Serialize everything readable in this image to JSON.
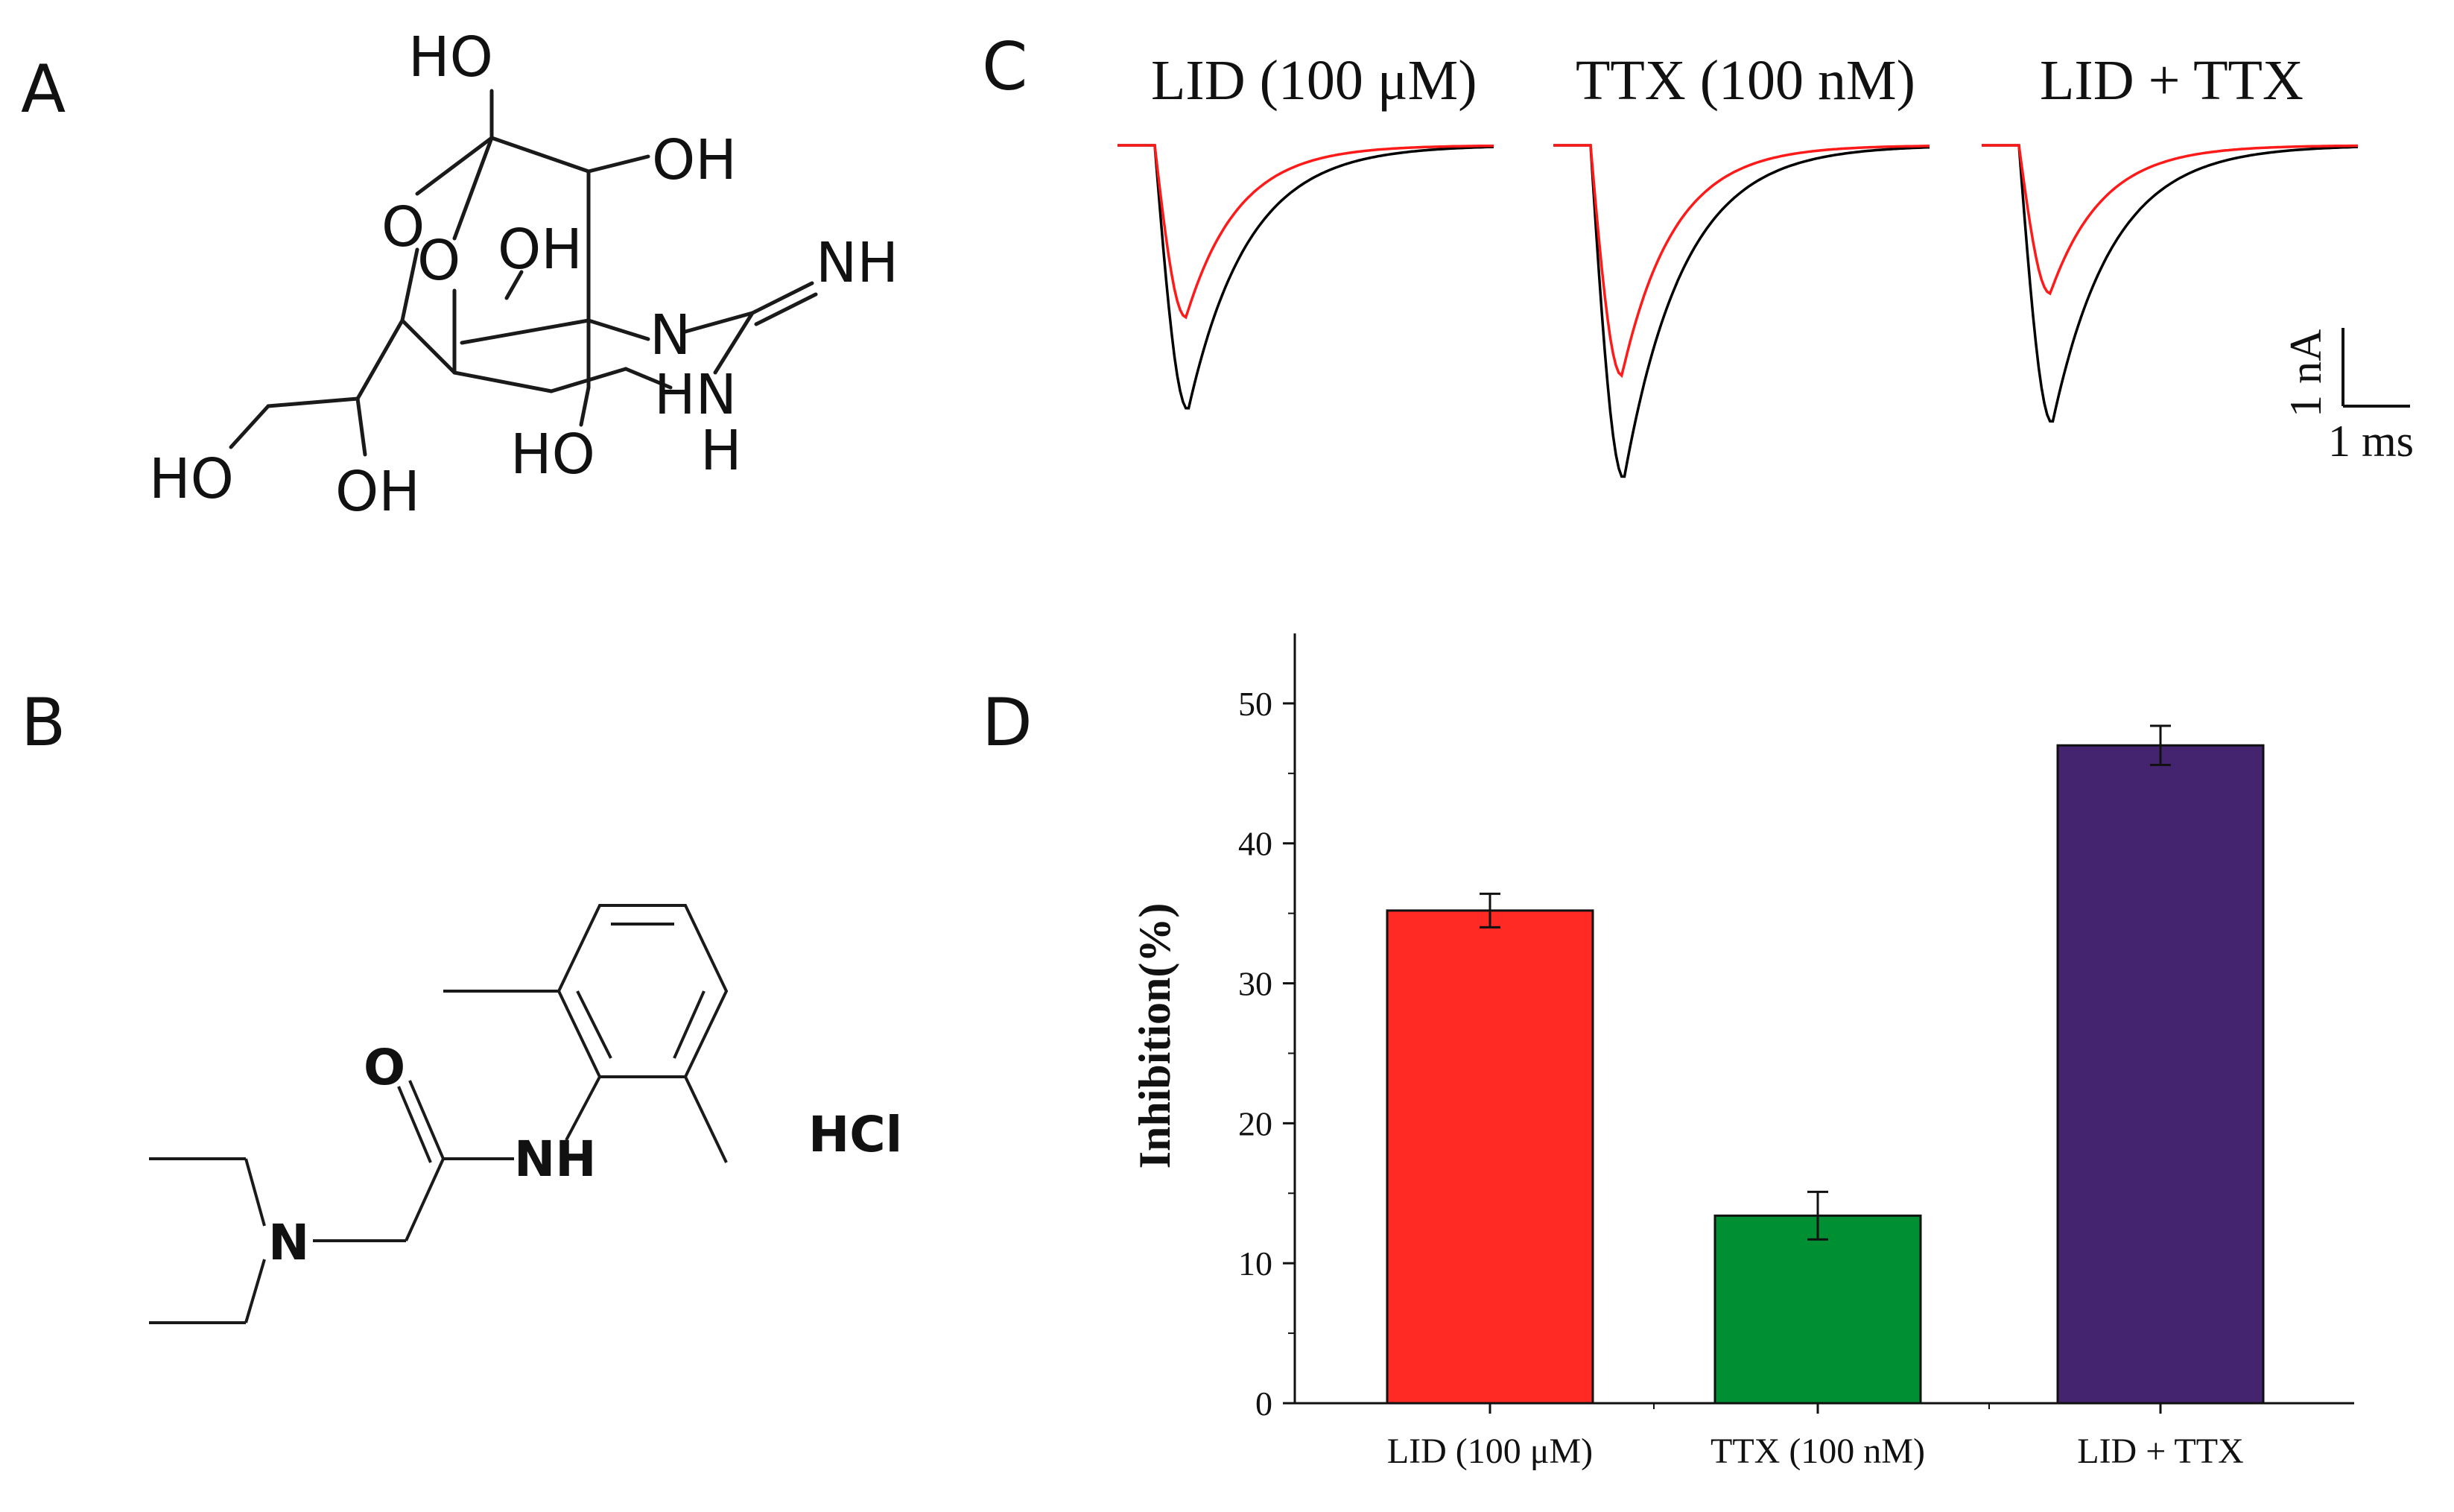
{
  "panels": {
    "a": "A",
    "b": "B",
    "c": "C",
    "d": "D"
  },
  "structure_a": {
    "ho_top": "HO",
    "oh_top_right": "OH",
    "o_ring": "O",
    "o_ring2": "O",
    "oh_mid": "OH",
    "nh_imine": "NH",
    "n_ring": "N",
    "hn_ring": "HN",
    "h_ring": "H",
    "ho_left": "HO",
    "oh_bottom": "OH",
    "ho_bottom2": "HO"
  },
  "structure_b": {
    "o": "O",
    "nh": "NH",
    "n": "N",
    "salt": "HCl"
  },
  "traces": {
    "titles": [
      "LID (100 μM)",
      "TTX (100 nM)",
      "LID + TTX"
    ],
    "control_color": "#000000",
    "drug_color": "#ff1a1a",
    "peak_control": [
      1,
      1.26,
      1.05
    ],
    "peak_drug": [
      0.65,
      0.87,
      0.56
    ],
    "scale_y": "1 nA",
    "scale_x": "1 ms"
  },
  "chart_data": {
    "type": "bar",
    "categories": [
      "LID (100 μM)",
      "TTX (100 nM)",
      "LID + TTX"
    ],
    "values": [
      35.2,
      13.4,
      47.0
    ],
    "errors": [
      1.2,
      1.7,
      1.4
    ],
    "colors": [
      "#ff2a24",
      "#009033",
      "#45246f"
    ],
    "ylabel": "Inhibition(%)",
    "ylim": [
      0,
      55
    ],
    "yticks": [
      0,
      10,
      20,
      30,
      40,
      50
    ]
  }
}
